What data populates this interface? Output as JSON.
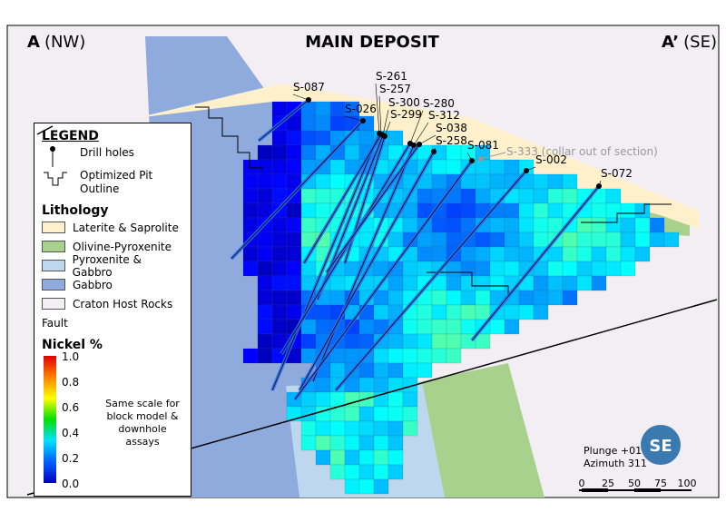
{
  "header": {
    "left": "A",
    "left_suffix": "(NW)",
    "title": "MAIN DEPOSIT",
    "right": "A’",
    "right_suffix": "(SE)"
  },
  "legend": {
    "title": "LEGEND",
    "symbols": [
      "Drill holes",
      "Optimized Pit Outline"
    ],
    "lithology_title": "Lithology",
    "lithology": [
      {
        "label": "Laterite & Saprolite",
        "color": "#fdf0cb"
      },
      {
        "label": "Olivine-Pyroxenite",
        "color": "#a9d18e"
      },
      {
        "label": "Pyroxenite & Gabbro",
        "color": "#bdd7ee"
      },
      {
        "label": "Gabbro",
        "color": "#8faadc"
      },
      {
        "label": "Craton Host Rocks",
        "color": "#f2eef4"
      }
    ],
    "fault": "Fault",
    "scale_title": "Nickel %",
    "scale_ticks": [
      "1.0",
      "0.8",
      "0.6",
      "0.4",
      "0.2",
      "0.0"
    ],
    "scale_note": "Same scale for block model & downhole assays"
  },
  "drill_holes": [
    "S-087",
    "S-026",
    "S-261",
    "S-257",
    "S-300",
    "S-299",
    "S-280",
    "S-312",
    "S-038",
    "S-258",
    "S-081",
    "S-002",
    "S-072"
  ],
  "collar_note": "S-333 (collar out of section)",
  "orientation": [
    "Plunge +01",
    "Azimuth 311"
  ],
  "logo": "SE",
  "scale_bar": [
    "0",
    "25",
    "50",
    "75",
    "100"
  ]
}
